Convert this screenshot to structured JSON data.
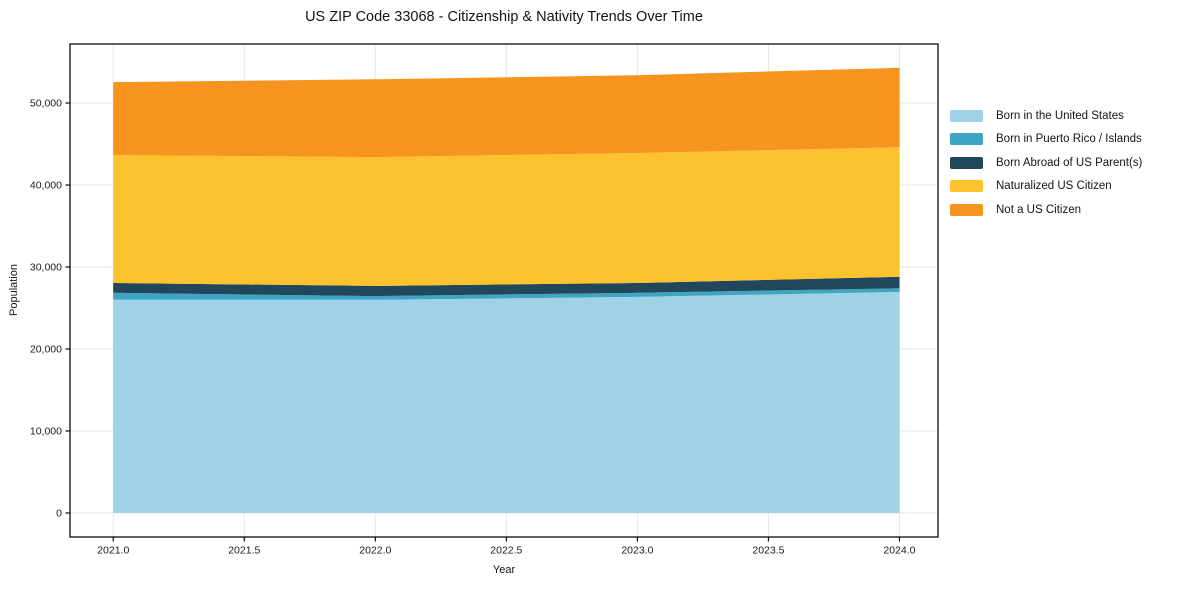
{
  "chart_data": {
    "type": "area",
    "stacked": true,
    "title": "US ZIP Code 33068 - Citizenship & Nativity Trends Over Time",
    "xlabel": "Year",
    "ylabel": "Population",
    "x": [
      2021,
      2022,
      2023,
      2024
    ],
    "series": [
      {
        "name": "Born in the United States",
        "color": "#a0d2e7",
        "values": [
          26000,
          26000,
          26350,
          26950
        ]
      },
      {
        "name": "Born in Puerto Rico / Islands",
        "color": "#3fa5c5",
        "values": [
          850,
          450,
          500,
          450
        ]
      },
      {
        "name": "Born Abroad of US Parent(s)",
        "color": "#21475d",
        "values": [
          1200,
          1250,
          1200,
          1400
        ]
      },
      {
        "name": "Naturalized US Citizen",
        "color": "#fdc32f",
        "values": [
          15600,
          15700,
          15850,
          15800
        ]
      },
      {
        "name": "Not a US Citizen",
        "color": "#f7941f",
        "values": [
          8900,
          9500,
          9500,
          9700
        ]
      }
    ],
    "xticks": [
      2021.0,
      2021.5,
      2022.0,
      2022.5,
      2023.0,
      2023.5,
      2024.0
    ],
    "xtick_labels": [
      "2021.0",
      "2021.5",
      "2022.0",
      "2022.5",
      "2023.0",
      "2023.5",
      "2024.0"
    ],
    "yticks": [
      0,
      10000,
      20000,
      30000,
      40000,
      50000
    ],
    "ytick_labels": [
      "0",
      "10,000",
      "20,000",
      "30,000",
      "40,000",
      "50,000"
    ],
    "xlim": [
      2020.835,
      2024.147
    ],
    "ylim": [
      -2930,
      57200
    ],
    "grid": true,
    "legend_position": "center right outside"
  },
  "colors": {
    "background": "#ffffff",
    "grid": "#e7e7e7",
    "spine": "#0a0a0a",
    "tick_text": "#1a1a1a"
  }
}
